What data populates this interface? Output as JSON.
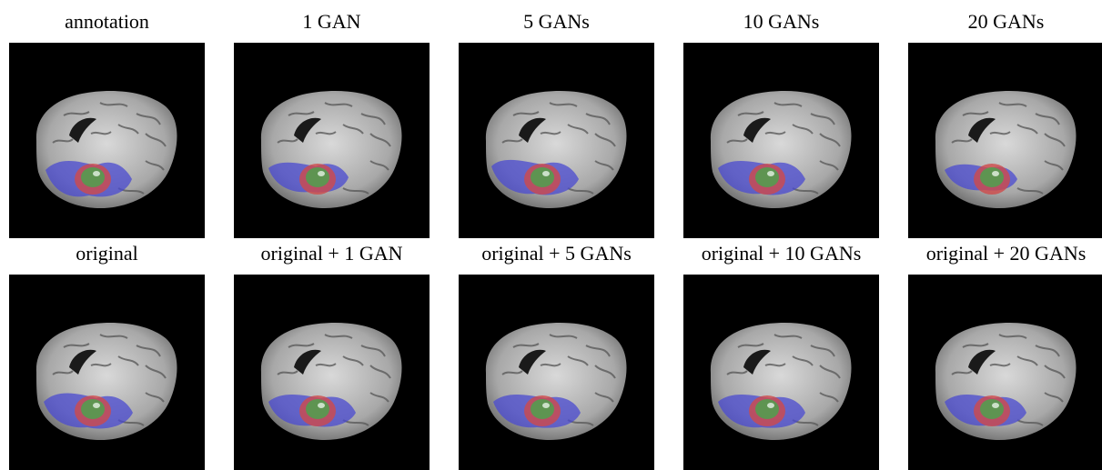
{
  "colors": {
    "background": "#000000",
    "brain_light": "#d9d9d9",
    "brain_mid": "#a8a8a8",
    "brain_dark": "#6a6a6a",
    "edema": "#4a4ad0",
    "enhancing": "#d04a4a",
    "core": "#4ea04e"
  },
  "rows": [
    {
      "panels": [
        {
          "title": "annotation"
        },
        {
          "title": "1 GAN"
        },
        {
          "title": "5 GANs"
        },
        {
          "title": "10 GANs"
        },
        {
          "title": "20 GANs"
        }
      ]
    },
    {
      "panels": [
        {
          "title": "original"
        },
        {
          "title": "original + 1 GAN"
        },
        {
          "title": "original + 5 GANs"
        },
        {
          "title": "original + 10 GANs"
        },
        {
          "title": "original + 20 GANs"
        }
      ]
    }
  ]
}
